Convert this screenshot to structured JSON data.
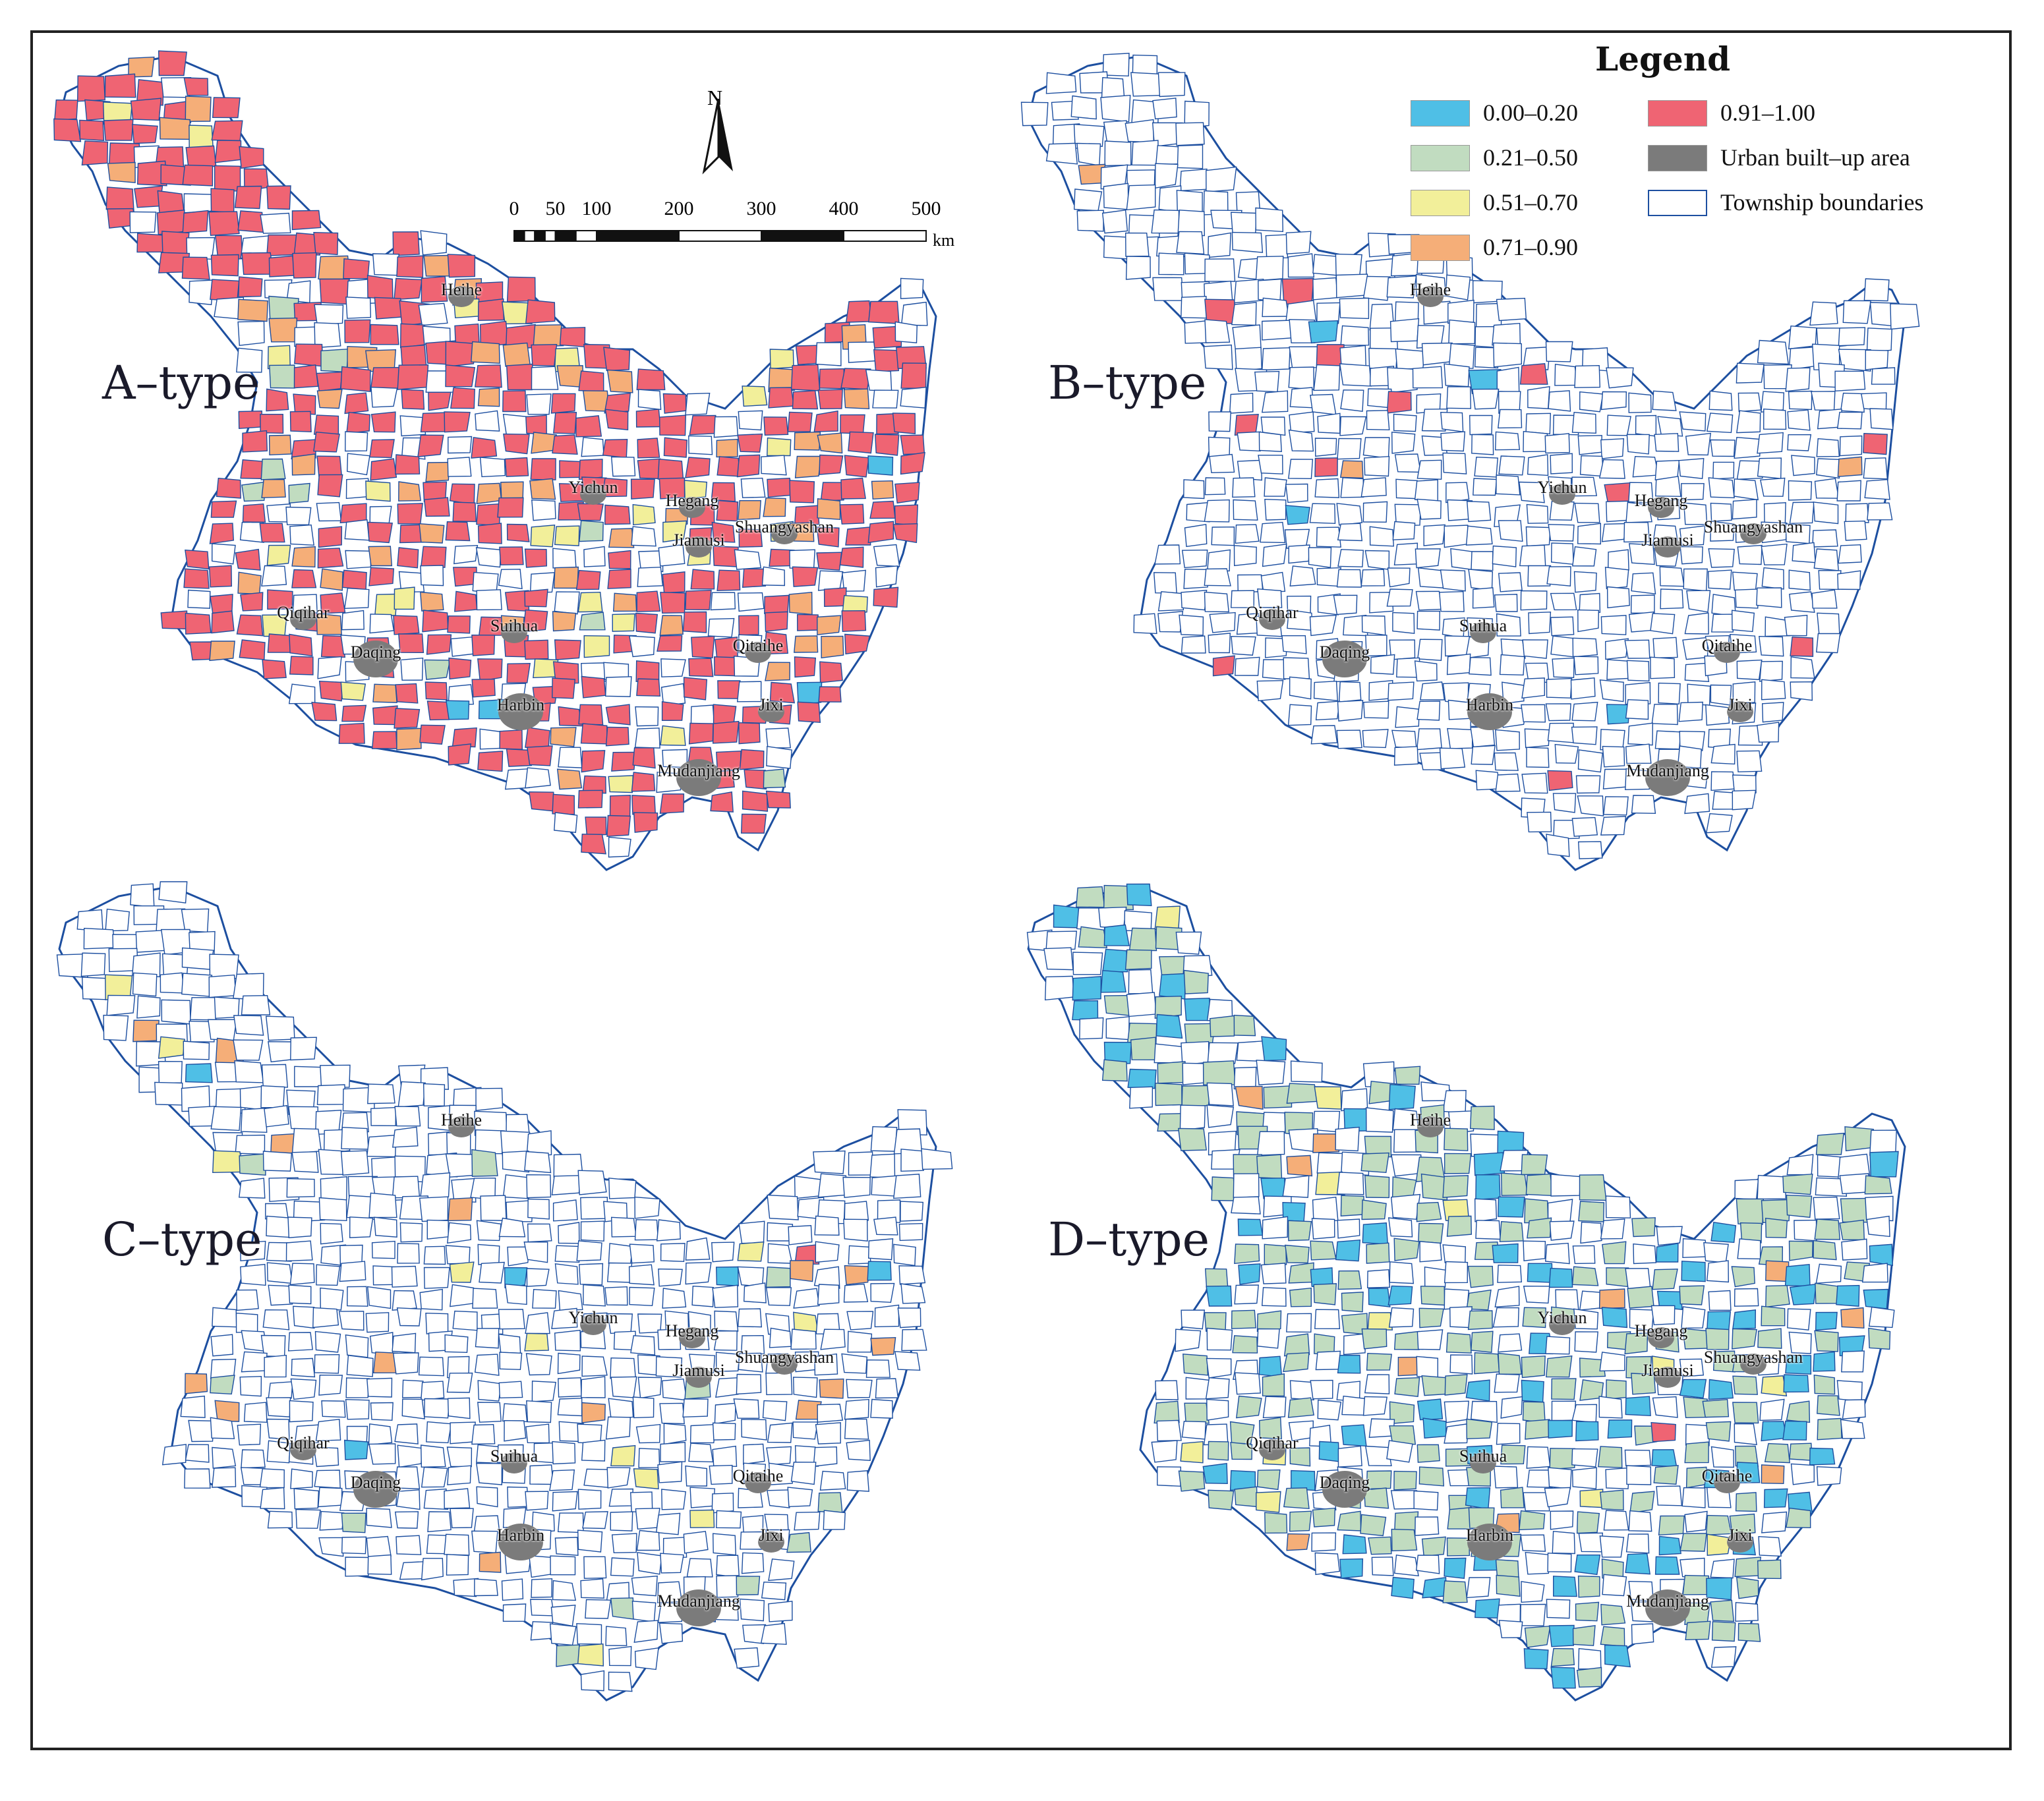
{
  "legend": {
    "title": "Legend",
    "items": [
      {
        "label": "0.00–0.20",
        "color": "#4fbfe6"
      },
      {
        "label": "0.21–0.50",
        "color": "#c1dcc0"
      },
      {
        "label": "0.51–0.70",
        "color": "#f2ef9a"
      },
      {
        "label": "0.71–0.90",
        "color": "#f5ae78"
      },
      {
        "label": "0.91–1.00",
        "color": "#ef6473"
      },
      {
        "label": "Urban built–up area",
        "color": "#7b7b7b"
      },
      {
        "label": "Township boundaries",
        "color": "#ffffff"
      }
    ]
  },
  "north_arrow": {
    "letter": "N"
  },
  "scale_bar": {
    "ticks": [
      "0",
      "50",
      "100",
      "200",
      "300",
      "400",
      "500"
    ],
    "tick_values": [
      0,
      50,
      100,
      200,
      300,
      400,
      500
    ],
    "unit": "km"
  },
  "boundary_color": "#1d4fa0",
  "panels": [
    {
      "id": "a",
      "label": "A–type",
      "dominant_class": "0.91–1.00"
    },
    {
      "id": "b",
      "label": "B–type",
      "dominant_class": "0.91–1.00"
    },
    {
      "id": "c",
      "label": "C–type",
      "dominant_class": "0.71–0.90"
    },
    {
      "id": "d",
      "label": "D–type",
      "dominant_class": "0.21–0.50"
    }
  ],
  "cities": [
    "Heihe",
    "Yichun",
    "Hegang",
    "Jiamusi",
    "Shuangyashan",
    "Qiqihar",
    "Daqing",
    "Suihua",
    "Harbin",
    "Qitaihe",
    "Jixi",
    "Mudanjiang"
  ]
}
